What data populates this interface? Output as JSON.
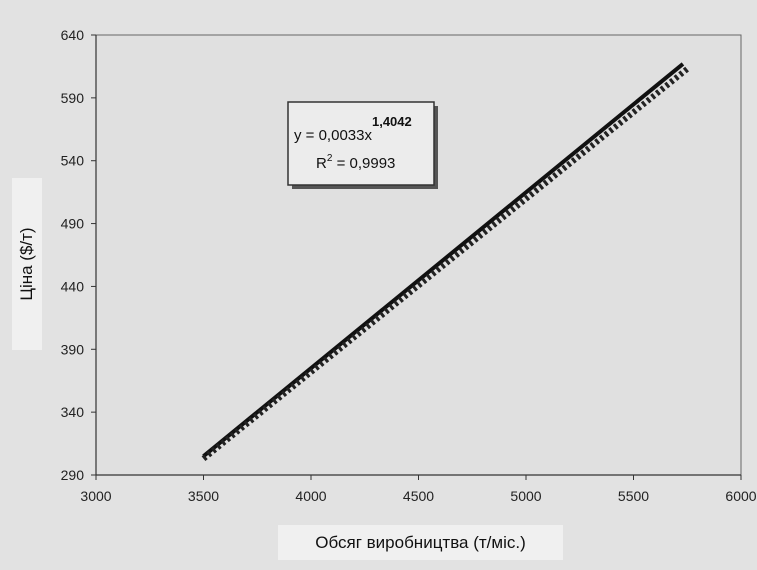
{
  "chart_data": {
    "type": "line",
    "xlabel": "Обсяг виробництва (т/міс.)",
    "ylabel": "Ціна ($/т)",
    "xlim": [
      3000,
      6000
    ],
    "ylim": [
      290,
      640
    ],
    "x_ticks": [
      "3000",
      "3500",
      "4000",
      "4500",
      "5000",
      "5500",
      "6000"
    ],
    "y_ticks": [
      "640",
      "590",
      "540",
      "490",
      "440",
      "390",
      "340",
      "290"
    ],
    "grid": false,
    "series": [
      {
        "style": "solid",
        "x": [
          3500,
          5730
        ],
        "y": [
          305,
          617
        ]
      },
      {
        "style": "dotted-trendline",
        "x": [
          3500,
          5750
        ],
        "y": [
          303,
          613
        ]
      }
    ],
    "annotation": {
      "equation_prefix": "y = 0,0033x",
      "equation_exponent": "1,4042",
      "r2_prefix": "R",
      "r2_sup": "2",
      "r2_value": " = 0,9993"
    }
  }
}
